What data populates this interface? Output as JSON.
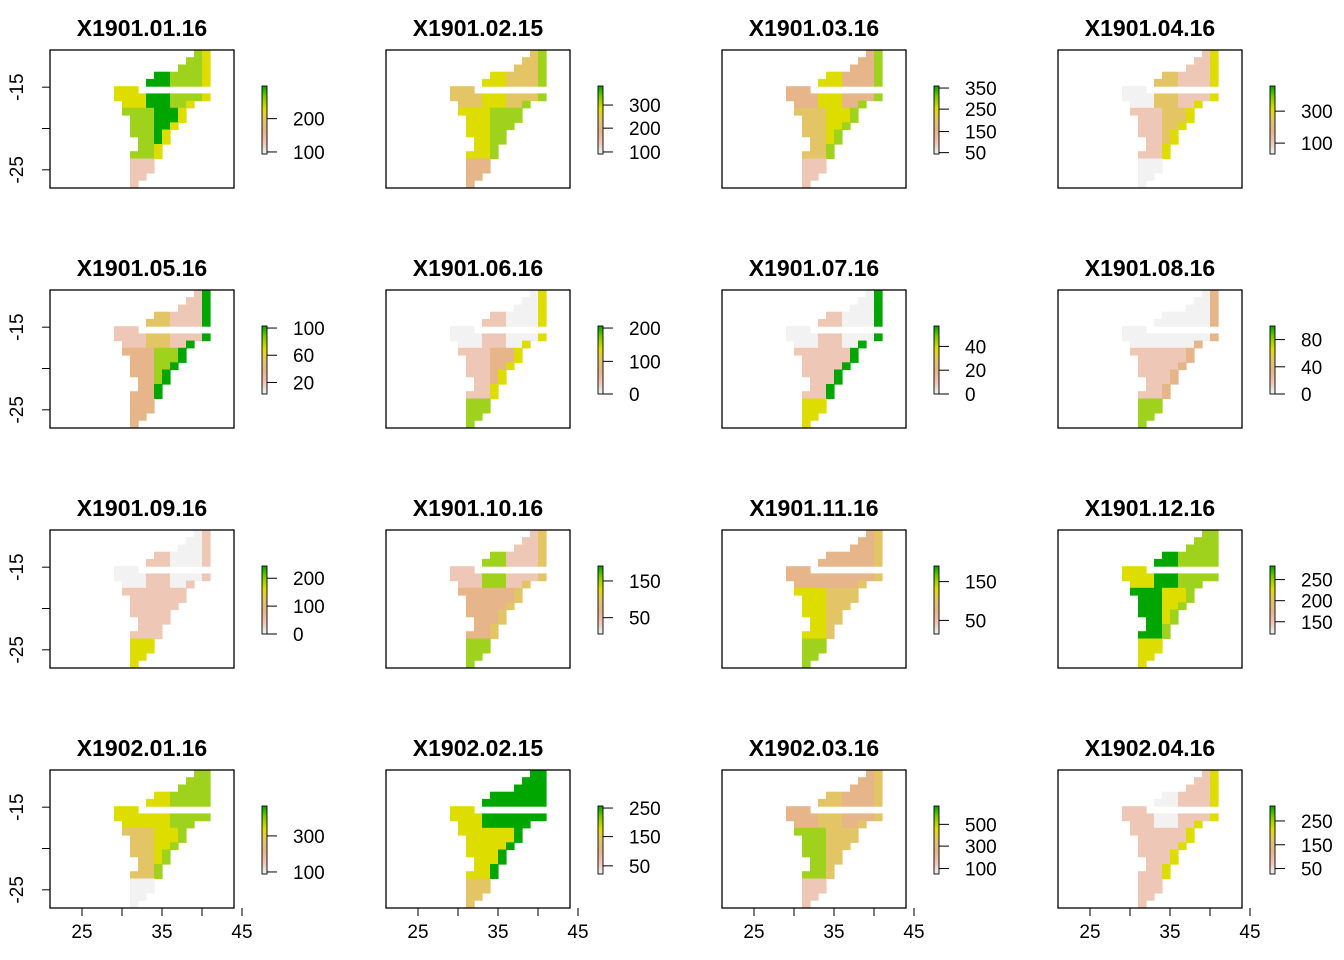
{
  "figure": {
    "type": "raster-map-grid",
    "rows": 4,
    "cols": 4,
    "map_xlim": [
      21,
      44
    ],
    "map_ylim": [
      -27.2,
      -10.5
    ],
    "x_ticks": [
      25,
      30,
      35,
      40,
      45
    ],
    "x_tick_labels": [
      "25",
      "",
      "35",
      "",
      "45"
    ],
    "y_ticks": [
      -15,
      -20,
      -25
    ],
    "y_tick_labels": [
      "-15",
      "",
      "-25"
    ],
    "palette": [
      "#f2f2f2",
      "#eec7b7",
      "#e6b58a",
      "#e3c566",
      "#dddd00",
      "#9ed21c",
      "#00a600"
    ]
  },
  "panels": [
    {
      "title": "X1901.01.16",
      "pattern": "A",
      "legend_labels": [
        {
          "v": "200",
          "f": 0.52
        },
        {
          "v": "100",
          "f": 0.03
        }
      ]
    },
    {
      "title": "X1901.02.15",
      "pattern": "B",
      "legend_labels": [
        {
          "v": "300",
          "f": 0.72
        },
        {
          "v": "200",
          "f": 0.38
        },
        {
          "v": "100",
          "f": 0.03
        }
      ]
    },
    {
      "title": "X1901.03.16",
      "pattern": "C",
      "legend_labels": [
        {
          "v": "350",
          "f": 0.97
        },
        {
          "v": "250",
          "f": 0.66
        },
        {
          "v": "150",
          "f": 0.33
        },
        {
          "v": "50",
          "f": 0.02
        }
      ]
    },
    {
      "title": "X1901.04.16",
      "pattern": "D",
      "legend_labels": [
        {
          "v": "300",
          "f": 0.63
        },
        {
          "v": "100",
          "f": 0.16
        }
      ]
    },
    {
      "title": "X1901.05.16",
      "pattern": "E",
      "legend_labels": [
        {
          "v": "100",
          "f": 0.97
        },
        {
          "v": "60",
          "f": 0.57
        },
        {
          "v": "20",
          "f": 0.17
        }
      ]
    },
    {
      "title": "X1901.06.16",
      "pattern": "F",
      "legend_labels": [
        {
          "v": "200",
          "f": 0.97
        },
        {
          "v": "100",
          "f": 0.48
        },
        {
          "v": "0",
          "f": 0.0
        }
      ]
    },
    {
      "title": "X1901.07.16",
      "pattern": "G",
      "legend_labels": [
        {
          "v": "40",
          "f": 0.7
        },
        {
          "v": "20",
          "f": 0.35
        },
        {
          "v": "0",
          "f": 0.0
        }
      ]
    },
    {
      "title": "X1901.08.16",
      "pattern": "H",
      "legend_labels": [
        {
          "v": "80",
          "f": 0.8
        },
        {
          "v": "40",
          "f": 0.4
        },
        {
          "v": "0",
          "f": 0.0
        }
      ]
    },
    {
      "title": "X1901.09.16",
      "pattern": "I",
      "legend_labels": [
        {
          "v": "200",
          "f": 0.82
        },
        {
          "v": "100",
          "f": 0.41
        },
        {
          "v": "0",
          "f": 0.0
        }
      ]
    },
    {
      "title": "X1901.10.16",
      "pattern": "J",
      "legend_labels": [
        {
          "v": "150",
          "f": 0.78
        },
        {
          "v": "50",
          "f": 0.24
        }
      ]
    },
    {
      "title": "X1901.11.16",
      "pattern": "K",
      "legend_labels": [
        {
          "v": "150",
          "f": 0.77
        },
        {
          "v": "50",
          "f": 0.2
        }
      ]
    },
    {
      "title": "X1901.12.16",
      "pattern": "L",
      "legend_labels": [
        {
          "v": "250",
          "f": 0.8
        },
        {
          "v": "200",
          "f": 0.49
        },
        {
          "v": "150",
          "f": 0.18
        }
      ]
    },
    {
      "title": "X1902.01.16",
      "pattern": "M",
      "legend_labels": [
        {
          "v": "300",
          "f": 0.56
        },
        {
          "v": "100",
          "f": 0.03
        }
      ]
    },
    {
      "title": "X1902.02.15",
      "pattern": "N",
      "legend_labels": [
        {
          "v": "250",
          "f": 0.97
        },
        {
          "v": "150",
          "f": 0.55
        },
        {
          "v": "50",
          "f": 0.12
        }
      ]
    },
    {
      "title": "X1902.03.16",
      "pattern": "O",
      "legend_labels": [
        {
          "v": "500",
          "f": 0.73
        },
        {
          "v": "300",
          "f": 0.41
        },
        {
          "v": "100",
          "f": 0.08
        }
      ]
    },
    {
      "title": "X1902.04.16",
      "pattern": "P",
      "legend_labels": [
        {
          "v": "250",
          "f": 0.78
        },
        {
          "v": "150",
          "f": 0.43
        },
        {
          "v": "50",
          "f": 0.08
        }
      ]
    }
  ]
}
